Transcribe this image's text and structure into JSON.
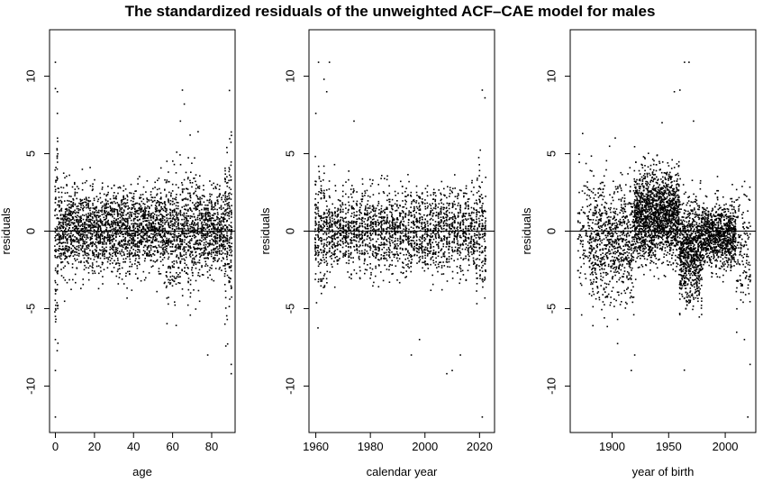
{
  "figure_title": "The standardized residuals of the unweighted ACF–CAE model for males",
  "chart_data": [
    {
      "type": "scatter",
      "panel": "age",
      "title": "",
      "xlabel": "age",
      "ylabel": "residuals",
      "xlim": [
        -3,
        92
      ],
      "ylim": [
        -13,
        13
      ],
      "xticks": [
        0,
        20,
        40,
        60,
        80
      ],
      "yticks": [
        -10,
        -5,
        0,
        5,
        10
      ],
      "hline": 0,
      "marker": "small black dots",
      "x_range_of_points": [
        0,
        90
      ],
      "typical_residual_band": [
        -3,
        3
      ],
      "notable_points": [
        {
          "x": 0,
          "y": 10.9
        },
        {
          "x": 0,
          "y": 9.2
        },
        {
          "x": 1,
          "y": 9.0
        },
        {
          "x": 1,
          "y": 7.6
        },
        {
          "x": 0,
          "y": -12.0
        },
        {
          "x": 0,
          "y": -9.0
        },
        {
          "x": 0,
          "y": -7.0
        },
        {
          "x": 0,
          "y": -5.5
        },
        {
          "x": 65,
          "y": 9.1
        },
        {
          "x": 66,
          "y": 8.2
        },
        {
          "x": 64,
          "y": 7.1
        },
        {
          "x": 69,
          "y": 6.2
        },
        {
          "x": 78,
          "y": -8.0
        },
        {
          "x": 90,
          "y": 6.4
        },
        {
          "x": 90,
          "y": -8.6
        },
        {
          "x": 90,
          "y": -9.2
        }
      ]
    },
    {
      "type": "scatter",
      "panel": "calendar year",
      "title": "",
      "xlabel": "calendar year",
      "ylabel": "residuals",
      "xlim": [
        1957.5,
        2025.5
      ],
      "ylim": [
        -13,
        13
      ],
      "xticks": [
        1960,
        1980,
        2000,
        2020
      ],
      "yticks": [
        -10,
        -5,
        0,
        5,
        10
      ],
      "hline": 0,
      "marker": "small black dots",
      "x_range_of_points": [
        1960,
        2022
      ],
      "typical_residual_band": [
        -3,
        3
      ],
      "notable_points": [
        {
          "x": 1961,
          "y": 10.9
        },
        {
          "x": 1965,
          "y": 10.9
        },
        {
          "x": 1963,
          "y": 9.8
        },
        {
          "x": 1964,
          "y": 9.0
        },
        {
          "x": 1960,
          "y": 7.6
        },
        {
          "x": 1974,
          "y": 7.1
        },
        {
          "x": 1998,
          "y": -7.0
        },
        {
          "x": 2010,
          "y": -9.0
        },
        {
          "x": 2008,
          "y": -9.2
        },
        {
          "x": 2013,
          "y": -8.0
        },
        {
          "x": 2021,
          "y": -12.0
        },
        {
          "x": 2021,
          "y": 9.1
        },
        {
          "x": 2022,
          "y": 8.6
        },
        {
          "x": 1995,
          "y": -8.0
        }
      ]
    },
    {
      "type": "scatter",
      "panel": "year of birth",
      "title": "",
      "xlabel": "year of birth",
      "ylabel": "residuals",
      "xlim": [
        1863,
        2027
      ],
      "ylim": [
        -13,
        13
      ],
      "xticks": [
        1900,
        1950,
        2000
      ],
      "yticks": [
        -10,
        -5,
        0,
        5,
        10
      ],
      "hline": 0,
      "marker": "small black dots",
      "x_range_of_points": [
        1870,
        2022
      ],
      "typical_residual_band": [
        -3,
        3
      ],
      "notable_points": [
        {
          "x": 1964,
          "y": 10.9
        },
        {
          "x": 1968,
          "y": 10.9
        },
        {
          "x": 1955,
          "y": 9.0
        },
        {
          "x": 1960,
          "y": 9.1
        },
        {
          "x": 1972,
          "y": 7.1
        },
        {
          "x": 1917,
          "y": -9.0
        },
        {
          "x": 1920,
          "y": -8.0
        },
        {
          "x": 2020,
          "y": -12.0
        },
        {
          "x": 2022,
          "y": -8.6
        },
        {
          "x": 2017,
          "y": -7.0
        },
        {
          "x": 1874,
          "y": 6.3
        }
      ]
    }
  ]
}
